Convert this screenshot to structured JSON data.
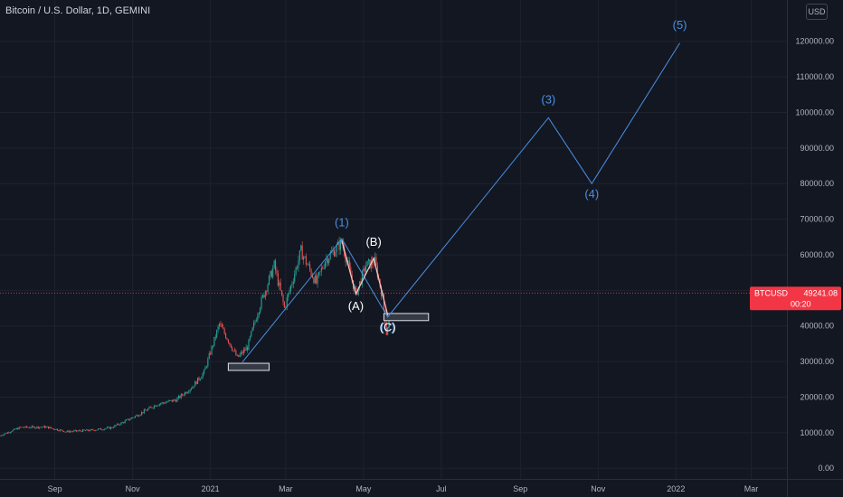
{
  "header": {
    "symbol_title": "Bitcoin / U.S. Dollar, 1D, GEMINI",
    "currency": "USD"
  },
  "price_tag": {
    "symbol": "BTCUSD",
    "price": "49241.08",
    "countdown": "00:20",
    "color": "#f23645"
  },
  "colors": {
    "background": "#131722",
    "grid": "#1e222d",
    "axis_text": "#b2b5be",
    "candle_up": "#26a69a",
    "candle_down": "#ef5350",
    "projection": "#4a90e2",
    "correction": "#f4c3c3",
    "labels_white": "#ffffff"
  },
  "chart_data": {
    "type": "candlestick",
    "xaxis": {
      "ticks": [
        {
          "label": "Sep",
          "date": "2020-09-01"
        },
        {
          "label": "Nov",
          "date": "2020-11-01"
        },
        {
          "label": "2021",
          "date": "2021-01-01"
        },
        {
          "label": "Mar",
          "date": "2021-03-01"
        },
        {
          "label": "May",
          "date": "2021-05-01"
        },
        {
          "label": "Jul",
          "date": "2021-07-01"
        },
        {
          "label": "Sep",
          "date": "2021-09-01"
        },
        {
          "label": "Nov",
          "date": "2021-11-01"
        },
        {
          "label": "2022",
          "date": "2022-01-01"
        },
        {
          "label": "Mar",
          "date": "2022-03-01"
        }
      ]
    },
    "yaxis": {
      "ticks": [
        "0.00",
        "10000.00",
        "20000.00",
        "30000.00",
        "40000.00",
        "50000.00",
        "60000.00",
        "70000.00",
        "80000.00",
        "90000.00",
        "100000.00",
        "110000.00",
        "120000.00"
      ],
      "ylim": [
        -3000,
        125000
      ]
    },
    "grid": true,
    "current_price": 49241.08,
    "price_path": [
      [
        "2020-07-20",
        9200
      ],
      [
        "2020-08-05",
        11500
      ],
      [
        "2020-08-25",
        11600
      ],
      [
        "2020-09-10",
        10300
      ],
      [
        "2020-09-30",
        10700
      ],
      [
        "2020-10-15",
        11400
      ],
      [
        "2020-10-25",
        13000
      ],
      [
        "2020-11-05",
        15000
      ],
      [
        "2020-11-20",
        18000
      ],
      [
        "2020-12-05",
        19200
      ],
      [
        "2020-12-18",
        23000
      ],
      [
        "2020-12-27",
        27000
      ],
      [
        "2021-01-08",
        40500
      ],
      [
        "2021-01-15",
        36000
      ],
      [
        "2021-01-22",
        31000
      ],
      [
        "2021-01-30",
        34000
      ],
      [
        "2021-02-08",
        45000
      ],
      [
        "2021-02-20",
        57000
      ],
      [
        "2021-02-28",
        45000
      ],
      [
        "2021-03-13",
        61000
      ],
      [
        "2021-03-25",
        52000
      ],
      [
        "2021-04-01",
        58500
      ],
      [
        "2021-04-14",
        63500
      ],
      [
        "2021-04-25",
        49000
      ],
      [
        "2021-05-03",
        57000
      ],
      [
        "2021-05-10",
        58000
      ],
      [
        "2021-05-16",
        48000
      ],
      [
        "2021-05-19",
        38000
      ],
      [
        "2021-05-21",
        42000
      ]
    ],
    "elliott_projection": {
      "color": "#4a90e2",
      "points": [
        [
          "2021-01-26",
          29800
        ],
        [
          "2021-04-14",
          64500
        ],
        [
          "2021-05-20",
          42500
        ],
        [
          "2021-09-23",
          98500
        ],
        [
          "2021-10-27",
          80000
        ],
        [
          "2022-01-04",
          119500
        ]
      ],
      "labels": [
        {
          "text": "(1)",
          "date": "2021-04-14",
          "price": 68000
        },
        {
          "text": "(3)",
          "date": "2021-09-23",
          "price": 102500
        },
        {
          "text": "(4)",
          "date": "2021-10-27",
          "price": 76000
        },
        {
          "text": "(5)",
          "date": "2022-01-04",
          "price": 123500
        },
        {
          "text": "(2)",
          "date": "2021-05-20",
          "price": 38500
        }
      ]
    },
    "abc_correction": {
      "color": "#f4c3c3",
      "points": [
        [
          "2021-04-14",
          64000
        ],
        [
          "2021-04-25",
          49000
        ],
        [
          "2021-05-09",
          59000
        ],
        [
          "2021-05-20",
          43000
        ]
      ],
      "labels": [
        {
          "text": "(A)",
          "date": "2021-04-25",
          "price": 44500
        },
        {
          "text": "(B)",
          "date": "2021-05-09",
          "price": 62500
        },
        {
          "text": "(C)",
          "date": "2021-05-20",
          "price": 38500
        }
      ]
    },
    "support_boxes": [
      {
        "from": "2021-01-15",
        "to": "2021-02-16",
        "low": 27500,
        "high": 29500
      },
      {
        "from": "2021-05-17",
        "to": "2021-06-21",
        "low": 41500,
        "high": 43500
      }
    ]
  }
}
